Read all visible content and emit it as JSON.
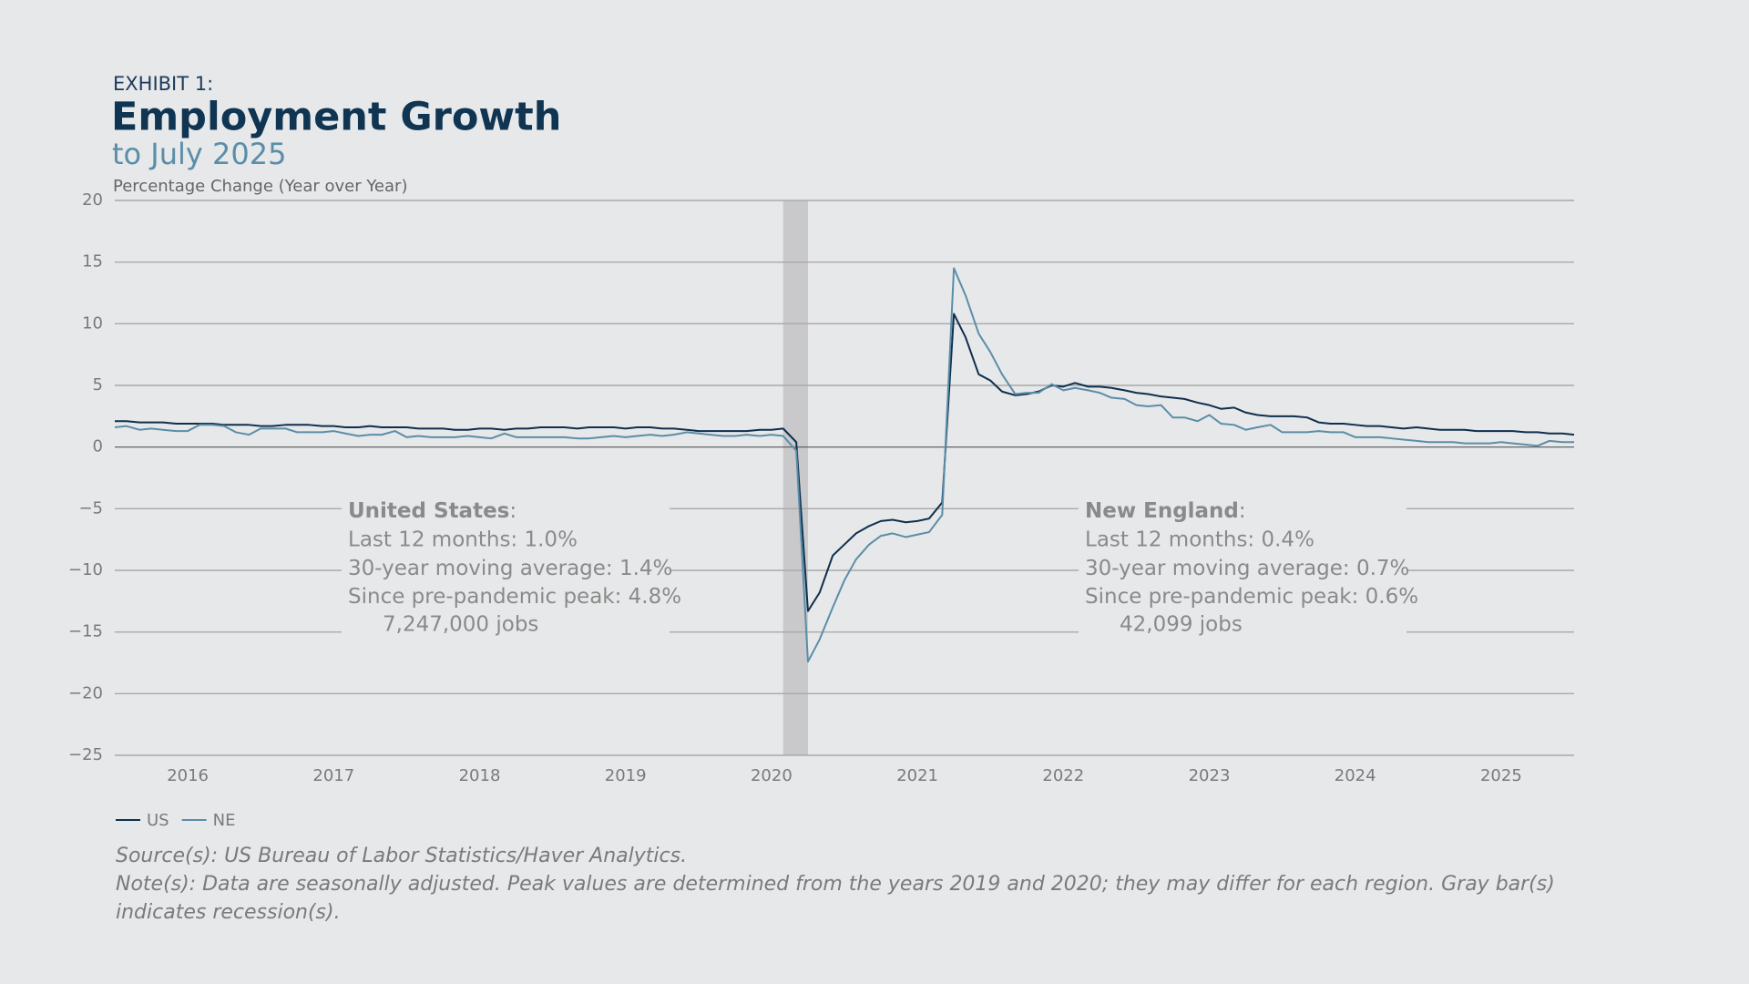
{
  "header": {
    "exhibit": "EXHIBIT 1:",
    "title": "Employment Growth",
    "subtitle": "to July 2025"
  },
  "chart_data": {
    "type": "line",
    "y_label": "Percentage Change (Year over Year)",
    "xlim": [
      2015.5,
      2025.5
    ],
    "xticks": [
      2016,
      2017,
      2018,
      2019,
      2020,
      2021,
      2022,
      2023,
      2024,
      2025
    ],
    "ylim": [
      -25,
      20
    ],
    "yticks": [
      {
        "value": -25,
        "label": "−25"
      },
      {
        "value": -20,
        "label": "−20"
      },
      {
        "value": -15,
        "label": "−15"
      },
      {
        "value": -10,
        "label": "−10"
      },
      {
        "value": -5,
        "label": "−5"
      },
      0,
      5,
      10,
      15,
      20
    ],
    "grid": true,
    "legend": "bottom-left",
    "recessions": [
      {
        "start": 2020.08,
        "end": 2020.25,
        "color": "#c9c9cb"
      }
    ],
    "x": [
      2015.5,
      2015.58,
      2015.67,
      2015.75,
      2015.83,
      2015.92,
      2016,
      2016.08,
      2016.17,
      2016.25,
      2016.33,
      2016.42,
      2016.5,
      2016.58,
      2016.67,
      2016.75,
      2016.83,
      2016.92,
      2017,
      2017.08,
      2017.17,
      2017.25,
      2017.33,
      2017.42,
      2017.5,
      2017.58,
      2017.67,
      2017.75,
      2017.83,
      2017.92,
      2018,
      2018.08,
      2018.17,
      2018.25,
      2018.33,
      2018.42,
      2018.5,
      2018.58,
      2018.67,
      2018.75,
      2018.83,
      2018.92,
      2019,
      2019.08,
      2019.17,
      2019.25,
      2019.33,
      2019.42,
      2019.5,
      2019.58,
      2019.67,
      2019.75,
      2019.83,
      2019.92,
      2020,
      2020.08,
      2020.17,
      2020.25,
      2020.33,
      2020.42,
      2020.5,
      2020.58,
      2020.67,
      2020.75,
      2020.83,
      2020.92,
      2021,
      2021.08,
      2021.17,
      2021.25,
      2021.33,
      2021.42,
      2021.5,
      2021.58,
      2021.67,
      2021.75,
      2021.83,
      2021.92,
      2022,
      2022.08,
      2022.17,
      2022.25,
      2022.33,
      2022.42,
      2022.5,
      2022.58,
      2022.67,
      2022.75,
      2022.83,
      2022.92,
      2023,
      2023.08,
      2023.17,
      2023.25,
      2023.33,
      2023.42,
      2023.5,
      2023.58,
      2023.67,
      2023.75,
      2023.83,
      2023.92,
      2024,
      2024.08,
      2024.17,
      2024.25,
      2024.33,
      2024.42,
      2024.5,
      2024.58,
      2024.67,
      2024.75,
      2024.83,
      2024.92,
      2025,
      2025.08,
      2025.17,
      2025.25,
      2025.33,
      2025.42,
      2025.5
    ],
    "series": [
      {
        "name": "US",
        "color": "#0f2f4e",
        "values": [
          2.1,
          2.1,
          2.0,
          2.0,
          2.0,
          1.9,
          1.9,
          1.9,
          1.9,
          1.8,
          1.8,
          1.8,
          1.7,
          1.7,
          1.8,
          1.8,
          1.8,
          1.7,
          1.7,
          1.6,
          1.6,
          1.7,
          1.6,
          1.6,
          1.6,
          1.5,
          1.5,
          1.5,
          1.4,
          1.4,
          1.5,
          1.5,
          1.4,
          1.5,
          1.5,
          1.6,
          1.6,
          1.6,
          1.5,
          1.6,
          1.6,
          1.6,
          1.5,
          1.6,
          1.6,
          1.5,
          1.5,
          1.4,
          1.3,
          1.3,
          1.3,
          1.3,
          1.3,
          1.4,
          1.4,
          1.5,
          0.4,
          -13.3,
          -11.8,
          -8.8,
          -7.9,
          -7.0,
          -6.4,
          -6.0,
          -5.9,
          -6.1,
          -6.0,
          -5.8,
          -4.5,
          10.8,
          8.9,
          5.9,
          5.4,
          4.5,
          4.2,
          4.3,
          4.5,
          5.0,
          4.9,
          5.2,
          4.9,
          4.9,
          4.8,
          4.6,
          4.4,
          4.3,
          4.1,
          4.0,
          3.9,
          3.6,
          3.4,
          3.1,
          3.2,
          2.8,
          2.6,
          2.5,
          2.5,
          2.5,
          2.4,
          2.0,
          1.9,
          1.9,
          1.8,
          1.7,
          1.7,
          1.6,
          1.5,
          1.6,
          1.5,
          1.4,
          1.4,
          1.4,
          1.3,
          1.3,
          1.3,
          1.3,
          1.2,
          1.2,
          1.1,
          1.1,
          1.0
        ]
      },
      {
        "name": "NE",
        "color": "#5a8ea8",
        "values": [
          1.6,
          1.7,
          1.4,
          1.5,
          1.4,
          1.3,
          1.3,
          1.8,
          1.8,
          1.7,
          1.2,
          1.0,
          1.5,
          1.5,
          1.5,
          1.2,
          1.2,
          1.2,
          1.3,
          1.1,
          0.9,
          1.0,
          1.0,
          1.3,
          0.8,
          0.9,
          0.8,
          0.8,
          0.8,
          0.9,
          0.8,
          0.7,
          1.1,
          0.8,
          0.8,
          0.8,
          0.8,
          0.8,
          0.7,
          0.7,
          0.8,
          0.9,
          0.8,
          0.9,
          1.0,
          0.9,
          1.0,
          1.2,
          1.1,
          1.0,
          0.9,
          0.9,
          1.0,
          0.9,
          1.0,
          0.9,
          -0.3,
          -17.4,
          -15.6,
          -13.0,
          -10.8,
          -9.1,
          -7.9,
          -7.2,
          -7.0,
          -7.3,
          -7.1,
          -6.9,
          -5.5,
          14.5,
          12.3,
          9.2,
          7.7,
          5.9,
          4.3,
          4.4,
          4.4,
          5.1,
          4.6,
          4.8,
          4.6,
          4.4,
          4.0,
          3.9,
          3.4,
          3.3,
          3.4,
          2.4,
          2.4,
          2.1,
          2.6,
          1.9,
          1.8,
          1.4,
          1.6,
          1.8,
          1.2,
          1.2,
          1.2,
          1.3,
          1.2,
          1.2,
          0.8,
          0.8,
          0.8,
          0.7,
          0.6,
          0.5,
          0.4,
          0.4,
          0.4,
          0.3,
          0.3,
          0.3,
          0.4,
          0.3,
          0.2,
          0.1,
          0.5,
          0.4,
          0.4
        ]
      }
    ],
    "annotations": [
      {
        "heading": [
          "United States",
          ":"
        ],
        "lines": [
          "Last 12 months:  1.0%",
          "30-year moving average: 1.4%",
          "Since pre-pandemic peak: 4.8%"
        ],
        "jobs": "7,247,000 jobs"
      },
      {
        "heading": [
          "New England",
          ":"
        ],
        "lines": [
          "Last 12 months:  0.4%",
          "30-year moving average: 0.7%",
          "Since pre-pandemic peak: 0.6%"
        ],
        "jobs": "42,099 jobs"
      }
    ]
  },
  "footer": {
    "source": "Source(s): US Bureau of Labor Statistics/Haver Analytics.",
    "note": "Note(s): Data are seasonally adjusted. Peak values are determined from the years 2019 and 2020; they may differ for each region. Gray bar(s) indicates recession(s)."
  }
}
